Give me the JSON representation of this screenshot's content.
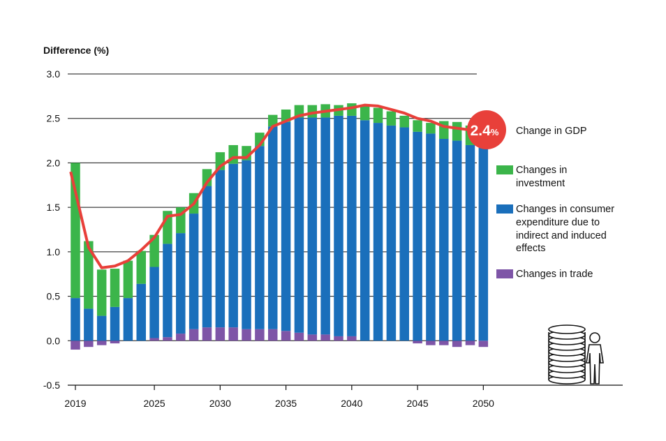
{
  "chart_data": {
    "type": "bar",
    "ylabel": "Difference (%)",
    "ylim": [
      -0.5,
      3.0
    ],
    "yticks": [
      "3.0",
      "2.5",
      "2.0",
      "1.5",
      "1.0",
      "0.5",
      "0.0",
      "-0.5"
    ],
    "ytick_values": [
      3.0,
      2.5,
      2.0,
      1.5,
      1.0,
      0.5,
      0.0,
      -0.5
    ],
    "xticks": [
      "2019",
      "2025",
      "2030",
      "2035",
      "2040",
      "2045",
      "2050"
    ],
    "xtick_years": [
      2019,
      2025,
      2030,
      2035,
      2040,
      2045,
      2050
    ],
    "grid": "horizontal",
    "years": [
      2019,
      2020,
      2021,
      2022,
      2023,
      2024,
      2025,
      2026,
      2027,
      2028,
      2029,
      2030,
      2031,
      2032,
      2033,
      2034,
      2035,
      2036,
      2037,
      2038,
      2039,
      2040,
      2041,
      2042,
      2043,
      2044,
      2045,
      2046,
      2047,
      2048,
      2049,
      2050
    ],
    "series": [
      {
        "name": "Changes in trade",
        "color": "#7e55a7",
        "values": [
          -0.1,
          -0.07,
          -0.05,
          -0.03,
          0,
          0,
          0.03,
          0.04,
          0.08,
          0.13,
          0.15,
          0.15,
          0.15,
          0.13,
          0.13,
          0.13,
          0.11,
          0.09,
          0.07,
          0.07,
          0.05,
          0.05,
          0,
          0,
          0,
          0,
          -0.03,
          -0.05,
          -0.05,
          -0.07,
          -0.05,
          -0.07
        ]
      },
      {
        "name": "Changes in consumer expenditure due to indirect and induced effects",
        "color": "#1a6fbb",
        "values": [
          0.48,
          0.36,
          0.28,
          0.38,
          0.48,
          0.64,
          0.8,
          1.05,
          1.13,
          1.3,
          1.59,
          1.77,
          1.84,
          1.9,
          2.06,
          2.28,
          2.35,
          2.42,
          2.44,
          2.44,
          2.48,
          2.48,
          2.48,
          2.45,
          2.42,
          2.4,
          2.35,
          2.33,
          2.27,
          2.25,
          2.2,
          2.19
        ]
      },
      {
        "name": "Changes in investment",
        "color": "#3bb54a",
        "values": [
          1.52,
          0.76,
          0.52,
          0.43,
          0.42,
          0.37,
          0.36,
          0.37,
          0.29,
          0.23,
          0.19,
          0.2,
          0.21,
          0.16,
          0.15,
          0.13,
          0.14,
          0.14,
          0.14,
          0.15,
          0.12,
          0.14,
          0.17,
          0.17,
          0.16,
          0.13,
          0.13,
          0.12,
          0.2,
          0.21,
          0.22,
          0.24
        ]
      }
    ],
    "line": {
      "name": "Change in GDP",
      "color": "#e8403a",
      "values": [
        1.9,
        1.05,
        0.82,
        0.84,
        0.9,
        1.02,
        1.16,
        1.4,
        1.42,
        1.54,
        1.78,
        1.96,
        2.06,
        2.06,
        2.2,
        2.41,
        2.47,
        2.53,
        2.56,
        2.58,
        2.6,
        2.62,
        2.65,
        2.64,
        2.6,
        2.56,
        2.5,
        2.47,
        2.41,
        2.39,
        2.37,
        2.37
      ]
    },
    "badge": {
      "value": "2.4",
      "unit": "%",
      "label": "Change in GDP"
    },
    "legend_position": "right"
  },
  "legend": {
    "gdp": "Change in GDP",
    "investment_line1": "Changes in",
    "investment_line2": "investment",
    "consumer_line1": "Changes in consumer",
    "consumer_line2": "expenditure due to",
    "consumer_line3": "indirect and induced",
    "consumer_line4": "effects",
    "trade": "Changes in trade"
  },
  "icons": {
    "illustration": "coin-stack-and-person-icon"
  }
}
